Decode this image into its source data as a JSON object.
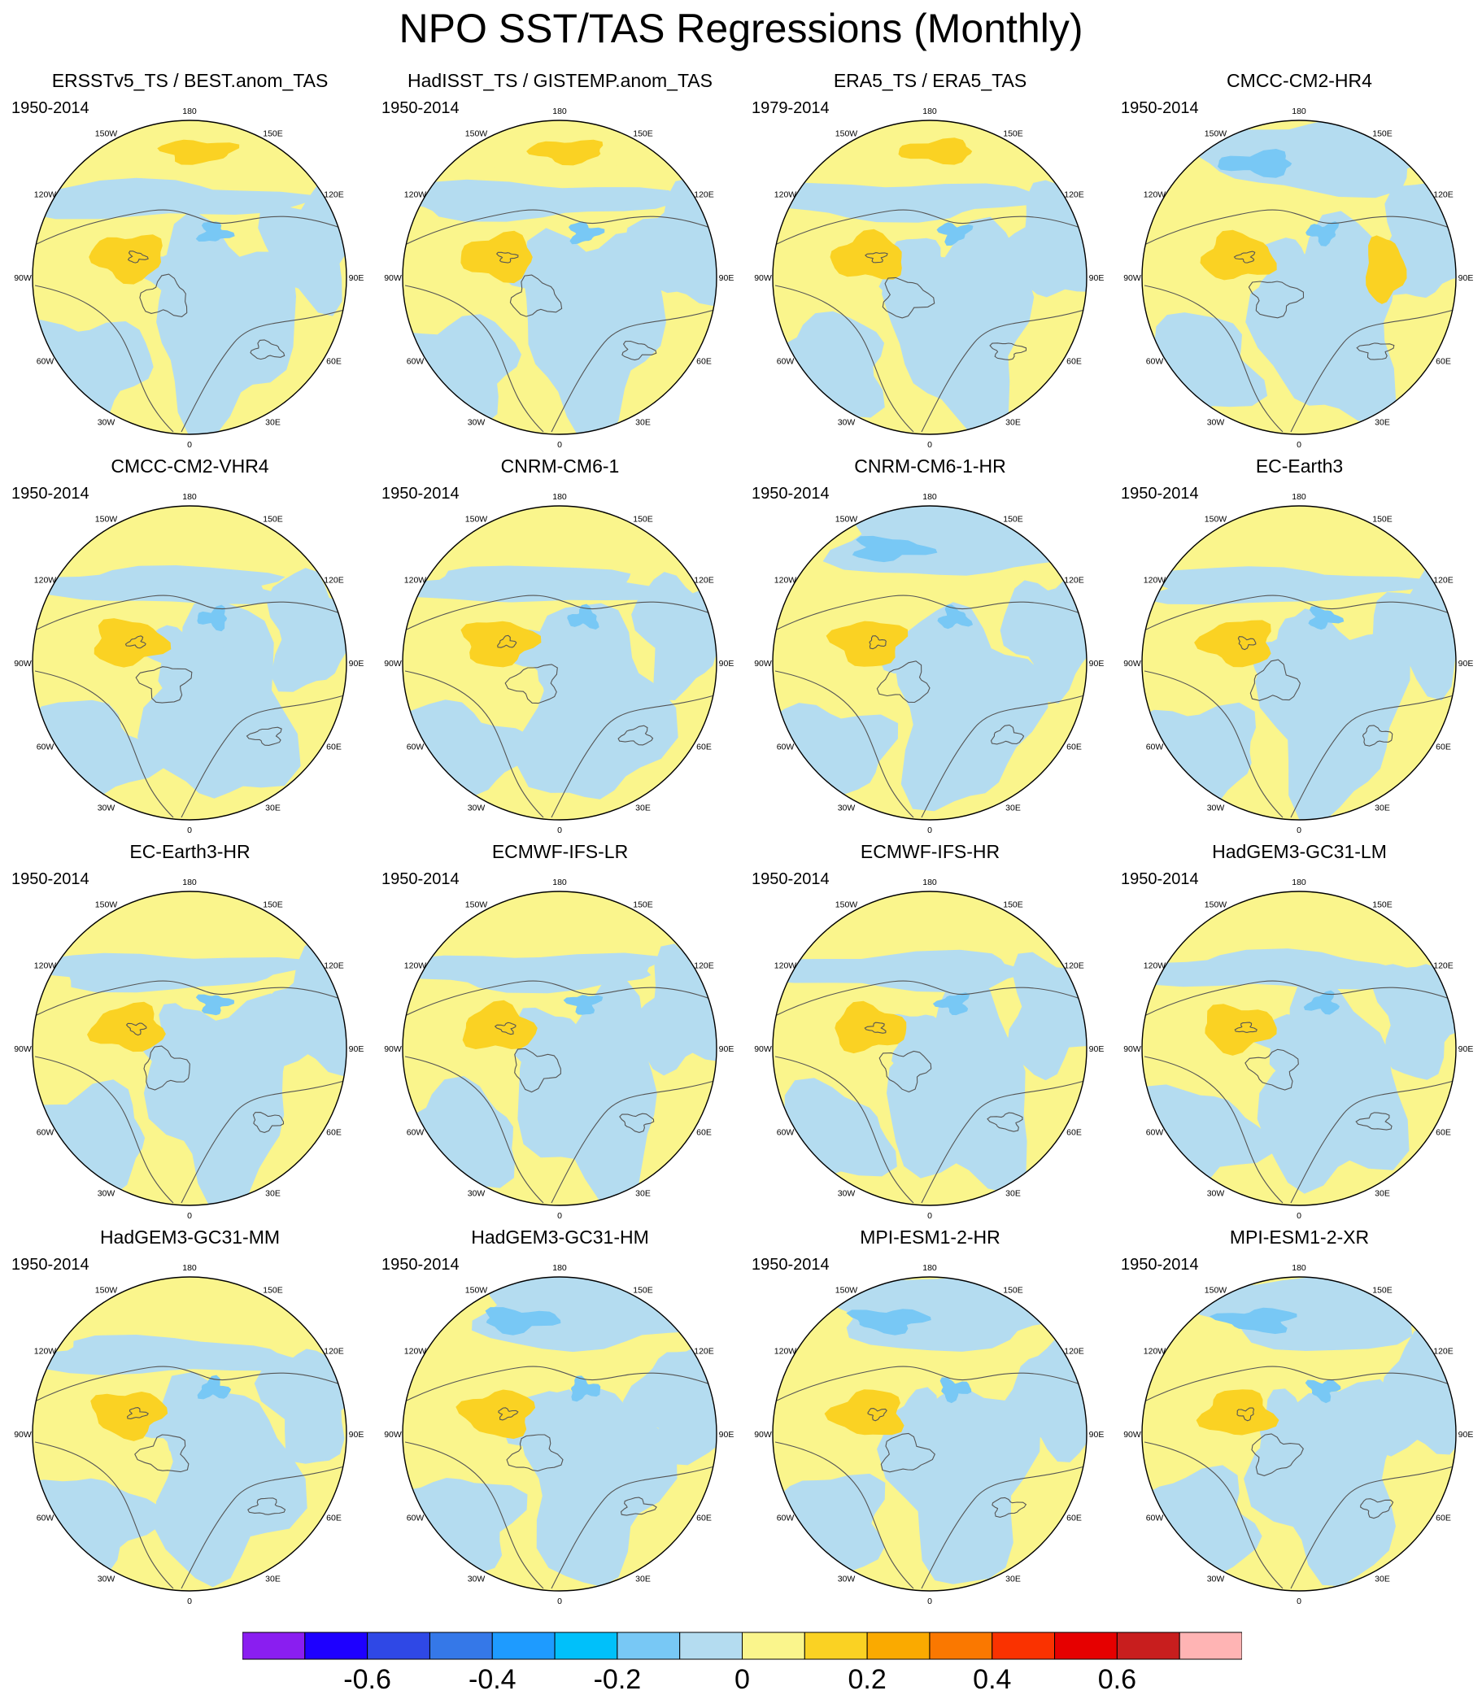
{
  "title": "NPO SST/TAS Regressions (Monthly)",
  "panels": [
    {
      "title": "ERSSTv5_TS / BEST.anom_TAS",
      "period": "1950-2014"
    },
    {
      "title": "HadISST_TS / GISTEMP.anom_TAS",
      "period": "1950-2014"
    },
    {
      "title": "ERA5_TS / ERA5_TAS",
      "period": "1979-2014"
    },
    {
      "title": "CMCC-CM2-HR4",
      "period": "1950-2014"
    },
    {
      "title": "CMCC-CM2-VHR4",
      "period": "1950-2014"
    },
    {
      "title": "CNRM-CM6-1",
      "period": "1950-2014"
    },
    {
      "title": "CNRM-CM6-1-HR",
      "period": "1950-2014"
    },
    {
      "title": "EC-Earth3",
      "period": "1950-2014"
    },
    {
      "title": "EC-Earth3-HR",
      "period": "1950-2014"
    },
    {
      "title": "ECMWF-IFS-LR",
      "period": "1950-2014"
    },
    {
      "title": "ECMWF-IFS-HR",
      "period": "1950-2014"
    },
    {
      "title": "HadGEM3-GC31-LM",
      "period": "1950-2014"
    },
    {
      "title": "HadGEM3-GC31-MM",
      "period": "1950-2014"
    },
    {
      "title": "HadGEM3-GC31-HM",
      "period": "1950-2014"
    },
    {
      "title": "MPI-ESM1-2-HR",
      "period": "1950-2014"
    },
    {
      "title": "MPI-ESM1-2-XR",
      "period": "1950-2014"
    }
  ],
  "longitude_labels": [
    "180",
    "150E",
    "120E",
    "90E",
    "60E",
    "30E",
    "0",
    "30W",
    "60W",
    "90W",
    "120W",
    "150W"
  ],
  "colorbar": {
    "colors": [
      "#8a1ef0",
      "#1e00ff",
      "#2f48e6",
      "#3578e8",
      "#1e9bff",
      "#00c0fa",
      "#78c8f5",
      "#b4dcf0",
      "#faf58c",
      "#fad223",
      "#faaa00",
      "#fa7800",
      "#fa3200",
      "#e60000",
      "#c81e1e",
      "#ffb4b4"
    ],
    "tick_labels": [
      "-0.6",
      "-0.4",
      "-0.2",
      "0",
      "0.2",
      "0.4",
      "0.6"
    ],
    "tick_values": [
      -0.6,
      -0.4,
      -0.2,
      0,
      0.2,
      0.4,
      0.6
    ],
    "levels": [
      -0.7,
      -0.6,
      -0.5,
      -0.4,
      -0.3,
      -0.2,
      -0.1,
      0,
      0.1,
      0.2,
      0.3,
      0.4,
      0.5,
      0.6,
      0.7
    ]
  },
  "colors": {
    "positive_light": "#faf58c",
    "positive_mid": "#fad223",
    "negative_light": "#b4dcf0",
    "negative_mid": "#78c8f5",
    "coastline": "#555555"
  }
}
